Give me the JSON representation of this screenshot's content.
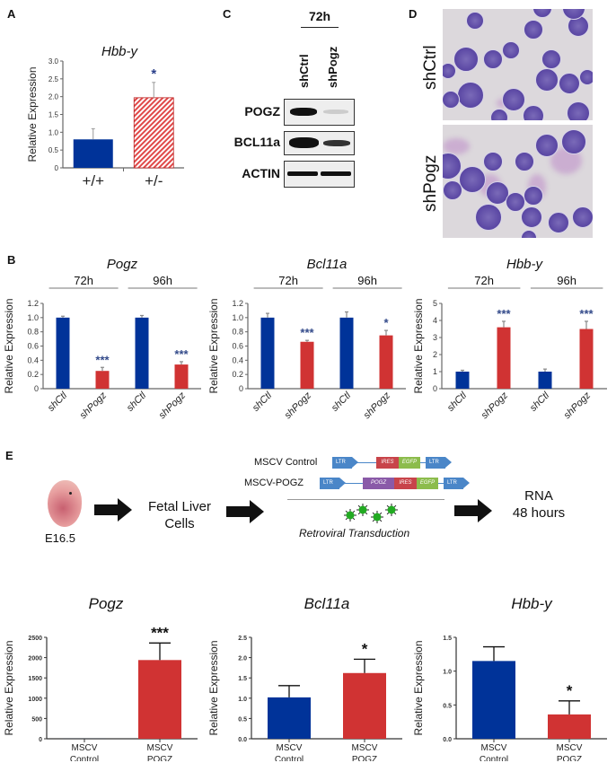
{
  "panels": {
    "A": "A",
    "B": "B",
    "C": "C",
    "D": "D",
    "E": "E"
  },
  "colors": {
    "blue": "#003399",
    "red": "#d03333",
    "hatch_red": "#e04848",
    "ltr_blue": "#4a86c8",
    "ires_red": "#c8444a",
    "egfp_green": "#8cbc4c",
    "pogz_purple": "#8a5aa8",
    "virus_green": "#22aa22"
  },
  "chart_data": [
    {
      "id": "A",
      "type": "bar",
      "title": "Hbb-y",
      "ylabel": "Relative Expression",
      "ylim": [
        0,
        3.0
      ],
      "yticks": [
        "0",
        "0.5",
        "1.0",
        "1.5",
        "2.0",
        "2.5",
        "3.0"
      ],
      "categories": [
        "+/+",
        "+/-"
      ],
      "values": [
        0.8,
        1.97
      ],
      "errors": [
        0.3,
        0.43
      ],
      "bar_styles": [
        "solid-blue",
        "hatched-red"
      ],
      "significance": [
        "",
        "*"
      ]
    },
    {
      "id": "B1",
      "type": "bar",
      "title": "Pogz",
      "ylabel": "Relative Expression",
      "ylim": [
        0,
        1.2
      ],
      "yticks": [
        "0",
        "0.2",
        "0.4",
        "0.6",
        "0.8",
        "1.0",
        "1.2"
      ],
      "groups": [
        "72h",
        "96h"
      ],
      "categories": [
        "shCtl",
        "shPogz",
        "shCtl",
        "shPogz"
      ],
      "values": [
        1.0,
        0.25,
        1.0,
        0.34
      ],
      "errors": [
        0.02,
        0.05,
        0.03,
        0.04
      ],
      "significance": [
        "",
        "***",
        "",
        "***"
      ]
    },
    {
      "id": "B2",
      "type": "bar",
      "title": "Bcl11a",
      "ylabel": "Relative Expression",
      "ylim": [
        0,
        1.2
      ],
      "yticks": [
        "0",
        "0.2",
        "0.4",
        "0.6",
        "0.8",
        "1.0",
        "1.2"
      ],
      "groups": [
        "72h",
        "96h"
      ],
      "categories": [
        "shCtl",
        "shPogz",
        "shCtl",
        "shPogz"
      ],
      "values": [
        1.0,
        0.66,
        1.0,
        0.75
      ],
      "errors": [
        0.06,
        0.02,
        0.08,
        0.07
      ],
      "significance": [
        "",
        "***",
        "",
        "*"
      ]
    },
    {
      "id": "B3",
      "type": "bar",
      "title": "Hbb-y",
      "ylabel": "Relative Expression",
      "ylim": [
        0,
        5
      ],
      "yticks": [
        "0",
        "1",
        "2",
        "3",
        "4",
        "5"
      ],
      "groups": [
        "72h",
        "96h"
      ],
      "categories": [
        "shCtl",
        "shPogz",
        "shCtl",
        "shPogz"
      ],
      "values": [
        1.0,
        3.6,
        1.0,
        3.5
      ],
      "errors": [
        0.08,
        0.35,
        0.15,
        0.45
      ],
      "significance": [
        "",
        "***",
        "",
        "***"
      ]
    },
    {
      "id": "E1",
      "type": "bar",
      "title": "Pogz",
      "ylabel": "Relative Expression",
      "ylim": [
        0,
        2500
      ],
      "yticks": [
        "0",
        "500",
        "1000",
        "1500",
        "2000",
        "2500"
      ],
      "categories": [
        "MSCV\nControl",
        "MSCV\nPOGZ"
      ],
      "values": [
        1,
        1940
      ],
      "errors": [
        0,
        420
      ],
      "significance": [
        "",
        "***"
      ]
    },
    {
      "id": "E2",
      "type": "bar",
      "title": "Bcl11a",
      "ylabel": "Relative Expression",
      "ylim": [
        0,
        2.5
      ],
      "yticks": [
        "0.0",
        "0.5",
        "1.0",
        "1.5",
        "2.0",
        "2.5"
      ],
      "categories": [
        "MSCV\nControl",
        "MSCV\nPOGZ"
      ],
      "values": [
        1.02,
        1.62
      ],
      "errors": [
        0.29,
        0.34
      ],
      "significance": [
        "",
        "*"
      ]
    },
    {
      "id": "E3",
      "type": "bar",
      "title": "Hbb-y",
      "ylabel": "Relative Expression",
      "ylim": [
        0,
        1.5
      ],
      "yticks": [
        "0.0",
        "0.5",
        "1.0",
        "1.5"
      ],
      "categories": [
        "MSCV\nControl",
        "MSCV\nPOGZ"
      ],
      "values": [
        1.15,
        0.36
      ],
      "errors": [
        0.21,
        0.2
      ],
      "significance": [
        "",
        "*"
      ]
    }
  ],
  "western": {
    "timepoint": "72h",
    "lanes": [
      "shCtrl",
      "shPogz"
    ],
    "rows": [
      "POGZ",
      "BCL11a",
      "ACTIN"
    ]
  },
  "micrographs": {
    "labels": [
      "shCtrl",
      "shPogz"
    ]
  },
  "schematic": {
    "embryo_label": "E16.5",
    "step1": "Fetal Liver\nCells",
    "constructs": [
      {
        "name": "MSCV Control",
        "segments": [
          "LTR",
          "IRES",
          "EGFP",
          "LTR"
        ]
      },
      {
        "name": "MSCV-POGZ",
        "segments": [
          "LTR",
          "POGZ",
          "IRES",
          "EGFP",
          "LTR"
        ]
      }
    ],
    "transduction": "Retroviral Transduction",
    "result": "RNA\n48 hours"
  }
}
